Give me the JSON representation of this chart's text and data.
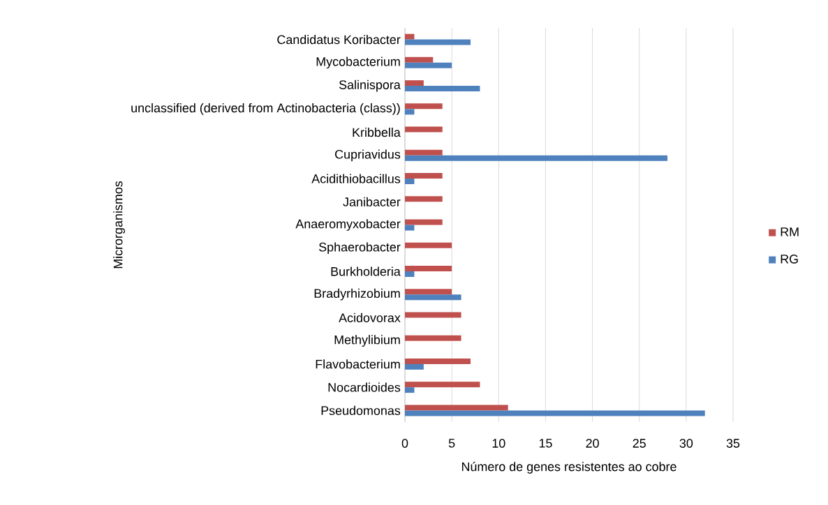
{
  "chart_data": {
    "type": "bar",
    "orientation": "horizontal",
    "xlabel": "Número de genes resistentes ao cobre",
    "ylabel": "Microrganismos",
    "categories": [
      "Candidatus Koribacter",
      "Mycobacterium",
      "Salinispora",
      "unclassified (derived from Actinobacteria (class))",
      "Kribbella",
      "Cupriavidus",
      "Acidithiobacillus",
      "Janibacter",
      "Anaeromyxobacter",
      "Sphaerobacter",
      "Burkholderia",
      "Bradyrhizobium",
      "Acidovorax",
      "Methylibium",
      "Flavobacterium",
      "Nocardioides",
      "Pseudomonas"
    ],
    "series": [
      {
        "name": "RM",
        "color": "#c0504d",
        "values": [
          1,
          3,
          2,
          4,
          4,
          4,
          4,
          4,
          4,
          5,
          5,
          5,
          6,
          6,
          7,
          8,
          11
        ]
      },
      {
        "name": "RG",
        "color": "#4f81bd",
        "values": [
          7,
          5,
          8,
          1,
          0,
          28,
          1,
          0,
          1,
          0,
          1,
          6,
          0,
          0,
          2,
          1,
          32
        ]
      }
    ],
    "xlim": [
      0,
      35
    ],
    "xticks": [
      0,
      5,
      10,
      15,
      20,
      25,
      30,
      35
    ],
    "grid": "x",
    "legend": "right"
  }
}
